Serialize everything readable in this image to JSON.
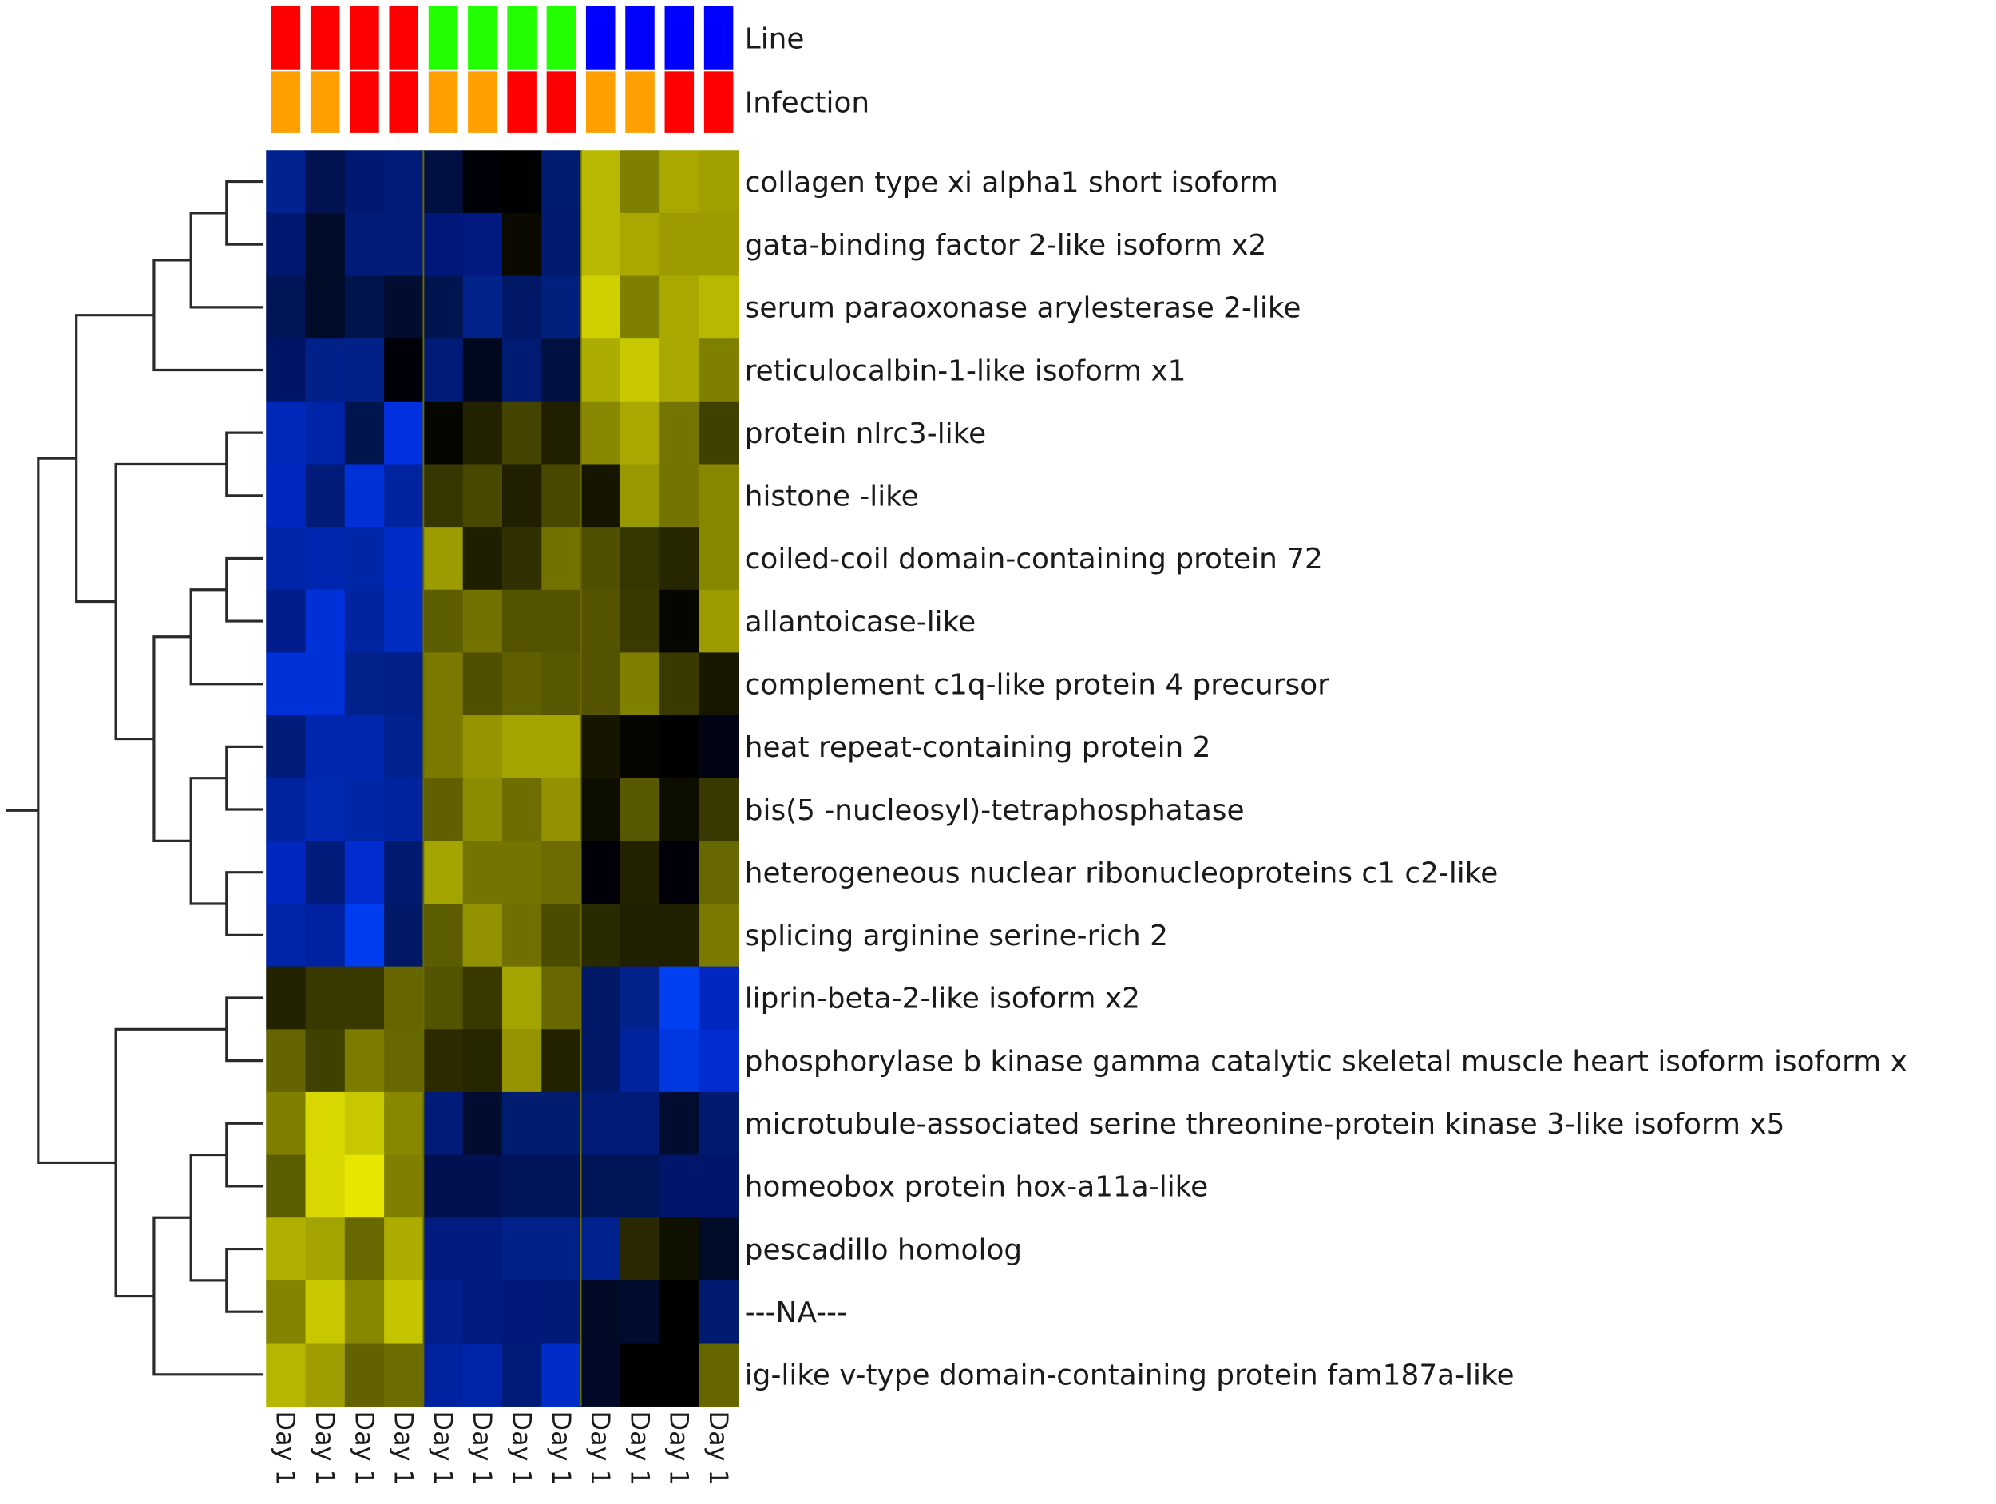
{
  "chart_data": {
    "type": "heatmap",
    "title": "",
    "annotation_tracks": [
      {
        "name": "Line",
        "colors": [
          "#ff0000",
          "#ff0000",
          "#ff0000",
          "#ff0000",
          "#22ff00",
          "#22ff00",
          "#22ff00",
          "#22ff00",
          "#0000ff",
          "#0000ff",
          "#0000ff",
          "#0000ff"
        ]
      },
      {
        "name": "Infection",
        "colors": [
          "#ffa000",
          "#ffa000",
          "#ff0000",
          "#ff0000",
          "#ffa000",
          "#ffa000",
          "#ff0000",
          "#ff0000",
          "#ffa000",
          "#ffa000",
          "#ff0000",
          "#ff0000"
        ]
      }
    ],
    "columns": [
      "Day 1",
      "Day 1",
      "Day 1",
      "Day 1",
      "Day 1",
      "Day 1",
      "Day 1",
      "Day 1",
      "Day 1",
      "Day 1",
      "Day 1",
      "Day 1"
    ],
    "column_group_separators_after": [
      4,
      8
    ],
    "color_scale": {
      "low": "#0033ff",
      "mid": "#000000",
      "high": "#eeee00"
    },
    "rows": [
      {
        "label": "collagen type xi alpha1 short isoform",
        "colors": [
          "#00228f",
          "#001250",
          "#001870",
          "#001c78",
          "#001040",
          "#000008",
          "#000000",
          "#001c70",
          "#b8b800",
          "#808000",
          "#a8a800",
          "#a0a000"
        ]
      },
      {
        "label": "gata-binding factor 2-like isoform x2",
        "colors": [
          "#001870",
          "#000c28",
          "#001c78",
          "#001c78",
          "#00187a",
          "#001a80",
          "#0a0a00",
          "#001a70",
          "#b8b800",
          "#a8a800",
          "#9c9c00",
          "#9c9c00"
        ]
      },
      {
        "label": "serum paraoxonase arylesterase 2-like",
        "colors": [
          "#001458",
          "#000c28",
          "#00144e",
          "#000c30",
          "#001450",
          "#00228a",
          "#001866",
          "#00207e",
          "#d0d000",
          "#808000",
          "#a8a800",
          "#b8b800"
        ]
      },
      {
        "label": "reticulocalbin-1-like isoform x1",
        "colors": [
          "#001466",
          "#00208a",
          "#002288",
          "#000008",
          "#001c78",
          "#00081e",
          "#001c72",
          "#001040",
          "#acac00",
          "#c8c800",
          "#a8a800",
          "#808000"
        ]
      },
      {
        "label": "protein nlrc3-like",
        "colors": [
          "#0028b8",
          "#0024a8",
          "#00144e",
          "#0030e0",
          "#060600",
          "#222200",
          "#444400",
          "#202000",
          "#888800",
          "#a8a800",
          "#747400",
          "#404000"
        ]
      },
      {
        "label": "histone -like",
        "colors": [
          "#0028c0",
          "#001c78",
          "#0030d8",
          "#0024a0",
          "#363600",
          "#484800",
          "#202000",
          "#484800",
          "#161600",
          "#989800",
          "#747400",
          "#888800"
        ]
      },
      {
        "label": "coiled-coil domain-containing protein 72",
        "colors": [
          "#0024a8",
          "#0026b0",
          "#0026a8",
          "#002cc8",
          "#9c9c00",
          "#1e1e00",
          "#303000",
          "#727200",
          "#505000",
          "#363600",
          "#262600",
          "#888800"
        ]
      },
      {
        "label": "allantoicase-like",
        "colors": [
          "#001c8a",
          "#0030d8",
          "#0024a0",
          "#002cc0",
          "#5c5c00",
          "#727200",
          "#545400",
          "#545400",
          "#545400",
          "#3a3a00",
          "#060600",
          "#9c9c00"
        ]
      },
      {
        "label": "complement c1q-like protein 4 precursor",
        "colors": [
          "#0030d8",
          "#0030d8",
          "#00228a",
          "#002088",
          "#7a7a00",
          "#505000",
          "#606000",
          "#585800",
          "#545400",
          "#808000",
          "#3a3a00",
          "#181800"
        ]
      },
      {
        "label": "heat repeat-containing protein 2",
        "colors": [
          "#001c7a",
          "#0026b0",
          "#0026b0",
          "#00228e",
          "#7a7a00",
          "#949400",
          "#a4a400",
          "#a4a400",
          "#161600",
          "#040400",
          "#000000",
          "#000414"
        ]
      },
      {
        "label": "bis(5 -nucleosyl)-tetraphosphatase",
        "colors": [
          "#0024a0",
          "#0028b0",
          "#0026a8",
          "#0024a0",
          "#606000",
          "#8c8c00",
          "#6e6e00",
          "#929200",
          "#0e0e00",
          "#585800",
          "#0e0e00",
          "#383800"
        ]
      },
      {
        "label": "heterogeneous nuclear ribonucleoproteins c1 c2-like",
        "colors": [
          "#0028c0",
          "#001c7a",
          "#002cd0",
          "#001a70",
          "#a4a400",
          "#747400",
          "#747400",
          "#6c6c00",
          "#000008",
          "#222200",
          "#000008",
          "#686800"
        ]
      },
      {
        "label": "splicing arginine serine-rich 2",
        "colors": [
          "#0024a8",
          "#0022a0",
          "#003cf0",
          "#001866",
          "#5c5c00",
          "#929200",
          "#707000",
          "#4c4c00",
          "#2a2a00",
          "#202000",
          "#202000",
          "#7a7a00"
        ]
      },
      {
        "label": "liprin-beta-2-like isoform x2",
        "colors": [
          "#222200",
          "#383800",
          "#383800",
          "#666600",
          "#545400",
          "#383800",
          "#a4a400",
          "#686800",
          "#001866",
          "#00228a",
          "#0040f0",
          "#0028c0"
        ]
      },
      {
        "label": "phosphorylase b kinase gamma catalytic skeletal muscle heart isoform isoform x",
        "colors": [
          "#646400",
          "#404000",
          "#7c7c00",
          "#686800",
          "#2e2a00",
          "#262600",
          "#949400",
          "#222200",
          "#001866",
          "#0024a0",
          "#0038e0",
          "#002cd0"
        ]
      },
      {
        "label": "microtubule-associated serine threonine-protein kinase 3-like isoform x5",
        "colors": [
          "#808000",
          "#d8d800",
          "#c8c800",
          "#888800",
          "#001c78",
          "#000c30",
          "#001c6e",
          "#001c6e",
          "#001c78",
          "#001c78",
          "#000c30",
          "#001a70"
        ]
      },
      {
        "label": "homeobox protein hox-a11a-like",
        "colors": [
          "#5c5c00",
          "#d8d800",
          "#e6e600",
          "#808000",
          "#001050",
          "#001050",
          "#00145a",
          "#00145a",
          "#001458",
          "#001458",
          "#00166a",
          "#00166a"
        ]
      },
      {
        "label": "pescadillo homolog",
        "colors": [
          "#b0b000",
          "#a4a400",
          "#686800",
          "#acac00",
          "#001c80",
          "#001c80",
          "#00208a",
          "#00208a",
          "#00228e",
          "#2a2800",
          "#101000",
          "#000c28"
        ]
      },
      {
        "label": "---NA---",
        "colors": [
          "#848400",
          "#c8c800",
          "#888800",
          "#c4c400",
          "#001e8c",
          "#001a80",
          "#00187a",
          "#001a78",
          "#000a26",
          "#000c2e",
          "#000000",
          "#001a70"
        ]
      },
      {
        "label": "ig-like v-type domain-containing protein fam187a-like",
        "colors": [
          "#b6b600",
          "#9e9e00",
          "#626200",
          "#6c6c00",
          "#0022a0",
          "#0024a8",
          "#001c78",
          "#002cc8",
          "#000a28",
          "#000000",
          "#000000",
          "#666600"
        ]
      }
    ],
    "dendrogram": {
      "orientation": "left",
      "clusters": [
        "((((r1,r2),r3),r4),((r5,r6),(((r7,r8),r9),((r10,r11),(r12,r13)))))",
        "((r14,r15),((((r16,r17),(r18,r19)),r20)))"
      ]
    },
    "legend_position": "top-right",
    "grid": false
  },
  "labels": {
    "track_line": "Line",
    "track_infection": "Infection"
  }
}
